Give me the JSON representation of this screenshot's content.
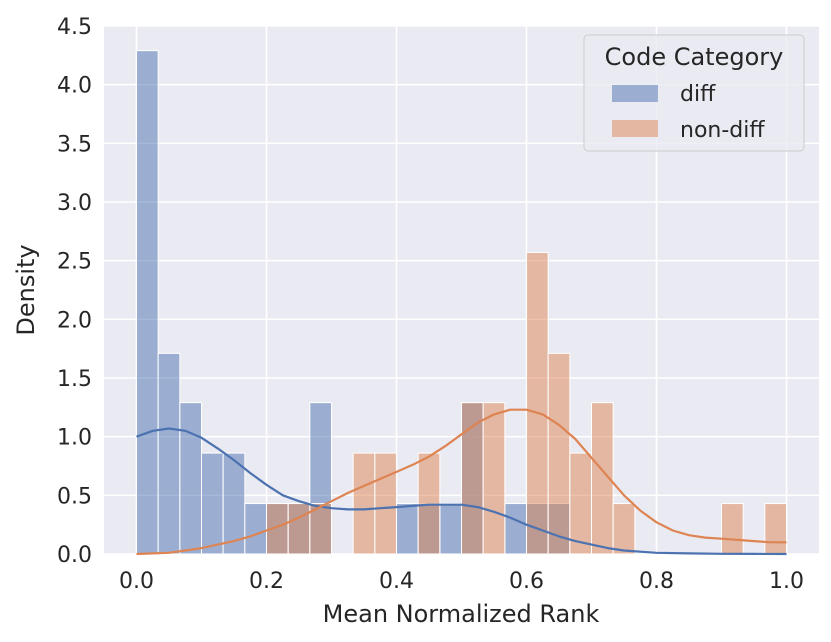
{
  "chart_data": {
    "type": "histogram",
    "xlabel": "Mean Normalized Rank",
    "ylabel": "Density",
    "xlim": [
      -0.05,
      1.05
    ],
    "ylim": [
      0,
      4.5
    ],
    "bin_width": 0.0333,
    "x_ticks": [
      0.0,
      0.2,
      0.4,
      0.6,
      0.8,
      1.0
    ],
    "x_tick_labels": [
      "0.0",
      "0.2",
      "0.4",
      "0.6",
      "0.8",
      "1.0"
    ],
    "y_ticks": [
      0.0,
      0.5,
      1.0,
      1.5,
      2.0,
      2.5,
      3.0,
      3.5,
      4.0,
      4.5
    ],
    "y_tick_labels": [
      "0.0",
      "0.5",
      "1.0",
      "1.5",
      "2.0",
      "2.5",
      "3.0",
      "3.5",
      "4.0",
      "4.5"
    ],
    "grid": true,
    "legend": {
      "title": "Code Category",
      "position": "top-right",
      "entries": [
        "diff",
        "non-diff"
      ]
    },
    "series": [
      {
        "name": "diff",
        "color": "#4c72b0",
        "bins": [
          {
            "x0": 0.0,
            "x1": 0.0333,
            "density": 4.29
          },
          {
            "x0": 0.0333,
            "x1": 0.0667,
            "density": 1.71
          },
          {
            "x0": 0.0667,
            "x1": 0.1,
            "density": 1.29
          },
          {
            "x0": 0.1,
            "x1": 0.1333,
            "density": 0.86
          },
          {
            "x0": 0.1333,
            "x1": 0.1667,
            "density": 0.86
          },
          {
            "x0": 0.1667,
            "x1": 0.2,
            "density": 0.43
          },
          {
            "x0": 0.2,
            "x1": 0.2333,
            "density": 0.43
          },
          {
            "x0": 0.2333,
            "x1": 0.2667,
            "density": 0.43
          },
          {
            "x0": 0.2667,
            "x1": 0.3,
            "density": 1.29
          },
          {
            "x0": 0.4,
            "x1": 0.4333,
            "density": 0.43
          },
          {
            "x0": 0.4333,
            "x1": 0.4667,
            "density": 0.43
          },
          {
            "x0": 0.4667,
            "x1": 0.5,
            "density": 0.43
          },
          {
            "x0": 0.5,
            "x1": 0.5333,
            "density": 1.29
          },
          {
            "x0": 0.5667,
            "x1": 0.6,
            "density": 0.43
          },
          {
            "x0": 0.6,
            "x1": 0.6333,
            "density": 0.43
          },
          {
            "x0": 0.6333,
            "x1": 0.6667,
            "density": 0.43
          }
        ],
        "kde": {
          "x": [
            0.0,
            0.025,
            0.05,
            0.075,
            0.1,
            0.125,
            0.15,
            0.175,
            0.2,
            0.225,
            0.25,
            0.275,
            0.3,
            0.325,
            0.35,
            0.375,
            0.4,
            0.425,
            0.45,
            0.475,
            0.5,
            0.525,
            0.55,
            0.575,
            0.6,
            0.625,
            0.65,
            0.675,
            0.7,
            0.725,
            0.75,
            0.775,
            0.8,
            0.85,
            0.9,
            0.95,
            1.0
          ],
          "y": [
            1.0,
            1.05,
            1.07,
            1.05,
            0.99,
            0.9,
            0.8,
            0.69,
            0.59,
            0.5,
            0.45,
            0.41,
            0.39,
            0.38,
            0.38,
            0.39,
            0.4,
            0.41,
            0.42,
            0.42,
            0.42,
            0.4,
            0.36,
            0.31,
            0.25,
            0.2,
            0.15,
            0.11,
            0.08,
            0.05,
            0.03,
            0.02,
            0.01,
            0.005,
            0.002,
            0.001,
            0.0
          ]
        }
      },
      {
        "name": "non-diff",
        "color": "#dd8452",
        "bins": [
          {
            "x0": 0.2,
            "x1": 0.2333,
            "density": 0.43
          },
          {
            "x0": 0.2333,
            "x1": 0.2667,
            "density": 0.43
          },
          {
            "x0": 0.2667,
            "x1": 0.3,
            "density": 0.43
          },
          {
            "x0": 0.3333,
            "x1": 0.3667,
            "density": 0.86
          },
          {
            "x0": 0.3667,
            "x1": 0.4,
            "density": 0.86
          },
          {
            "x0": 0.4333,
            "x1": 0.4667,
            "density": 0.86
          },
          {
            "x0": 0.5,
            "x1": 0.5333,
            "density": 1.29
          },
          {
            "x0": 0.5333,
            "x1": 0.5667,
            "density": 1.29
          },
          {
            "x0": 0.6,
            "x1": 0.6333,
            "density": 2.57
          },
          {
            "x0": 0.6333,
            "x1": 0.6667,
            "density": 1.71
          },
          {
            "x0": 0.6667,
            "x1": 0.7,
            "density": 0.86
          },
          {
            "x0": 0.7,
            "x1": 0.7333,
            "density": 1.29
          },
          {
            "x0": 0.7333,
            "x1": 0.7667,
            "density": 0.43
          },
          {
            "x0": 0.9,
            "x1": 0.9333,
            "density": 0.43
          },
          {
            "x0": 0.9667,
            "x1": 1.0,
            "density": 0.43
          }
        ],
        "kde": {
          "x": [
            0.0,
            0.025,
            0.05,
            0.075,
            0.1,
            0.125,
            0.15,
            0.175,
            0.2,
            0.225,
            0.25,
            0.275,
            0.3,
            0.325,
            0.35,
            0.375,
            0.4,
            0.425,
            0.45,
            0.475,
            0.5,
            0.525,
            0.55,
            0.575,
            0.6,
            0.625,
            0.65,
            0.675,
            0.7,
            0.725,
            0.75,
            0.775,
            0.8,
            0.825,
            0.85,
            0.875,
            0.9,
            0.925,
            0.95,
            0.975,
            1.0
          ],
          "y": [
            0.0,
            0.005,
            0.01,
            0.03,
            0.05,
            0.08,
            0.11,
            0.15,
            0.2,
            0.25,
            0.31,
            0.38,
            0.45,
            0.52,
            0.58,
            0.64,
            0.7,
            0.76,
            0.83,
            0.92,
            1.02,
            1.12,
            1.19,
            1.23,
            1.23,
            1.19,
            1.1,
            0.98,
            0.82,
            0.66,
            0.5,
            0.37,
            0.27,
            0.2,
            0.16,
            0.14,
            0.13,
            0.12,
            0.11,
            0.1,
            0.1
          ]
        }
      }
    ]
  }
}
